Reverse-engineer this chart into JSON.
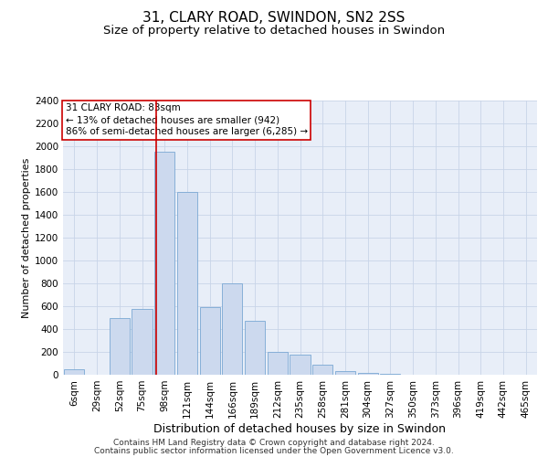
{
  "title": "31, CLARY ROAD, SWINDON, SN2 2SS",
  "subtitle": "Size of property relative to detached houses in Swindon",
  "xlabel": "Distribution of detached houses by size in Swindon",
  "ylabel": "Number of detached properties",
  "footer_line1": "Contains HM Land Registry data © Crown copyright and database right 2024.",
  "footer_line2": "Contains public sector information licensed under the Open Government Licence v3.0.",
  "categories": [
    "6sqm",
    "29sqm",
    "52sqm",
    "75sqm",
    "98sqm",
    "121sqm",
    "144sqm",
    "166sqm",
    "189sqm",
    "212sqm",
    "235sqm",
    "258sqm",
    "281sqm",
    "304sqm",
    "327sqm",
    "350sqm",
    "373sqm",
    "396sqm",
    "419sqm",
    "442sqm",
    "465sqm"
  ],
  "values": [
    50,
    0,
    500,
    580,
    1950,
    1600,
    590,
    800,
    475,
    200,
    180,
    85,
    30,
    20,
    10,
    0,
    0,
    0,
    0,
    0,
    0
  ],
  "bar_color": "#ccd9ee",
  "bar_edge_color": "#7aa8d4",
  "annotation_line1": "31 CLARY ROAD: 83sqm",
  "annotation_line2": "← 13% of detached houses are smaller (942)",
  "annotation_line3": "86% of semi-detached houses are larger (6,285) →",
  "annotation_box_color": "#ffffff",
  "annotation_box_edge": "#cc0000",
  "vline_x": 3.62,
  "vline_color": "#cc0000",
  "ylim": [
    0,
    2400
  ],
  "yticks": [
    0,
    200,
    400,
    600,
    800,
    1000,
    1200,
    1400,
    1600,
    1800,
    2000,
    2200,
    2400
  ],
  "grid_color": "#c8d4e8",
  "bg_color": "#e8eef8",
  "title_fontsize": 11,
  "subtitle_fontsize": 9.5,
  "xlabel_fontsize": 9,
  "ylabel_fontsize": 8,
  "tick_fontsize": 7.5,
  "annotation_fontsize": 7.5,
  "footer_fontsize": 6.5
}
